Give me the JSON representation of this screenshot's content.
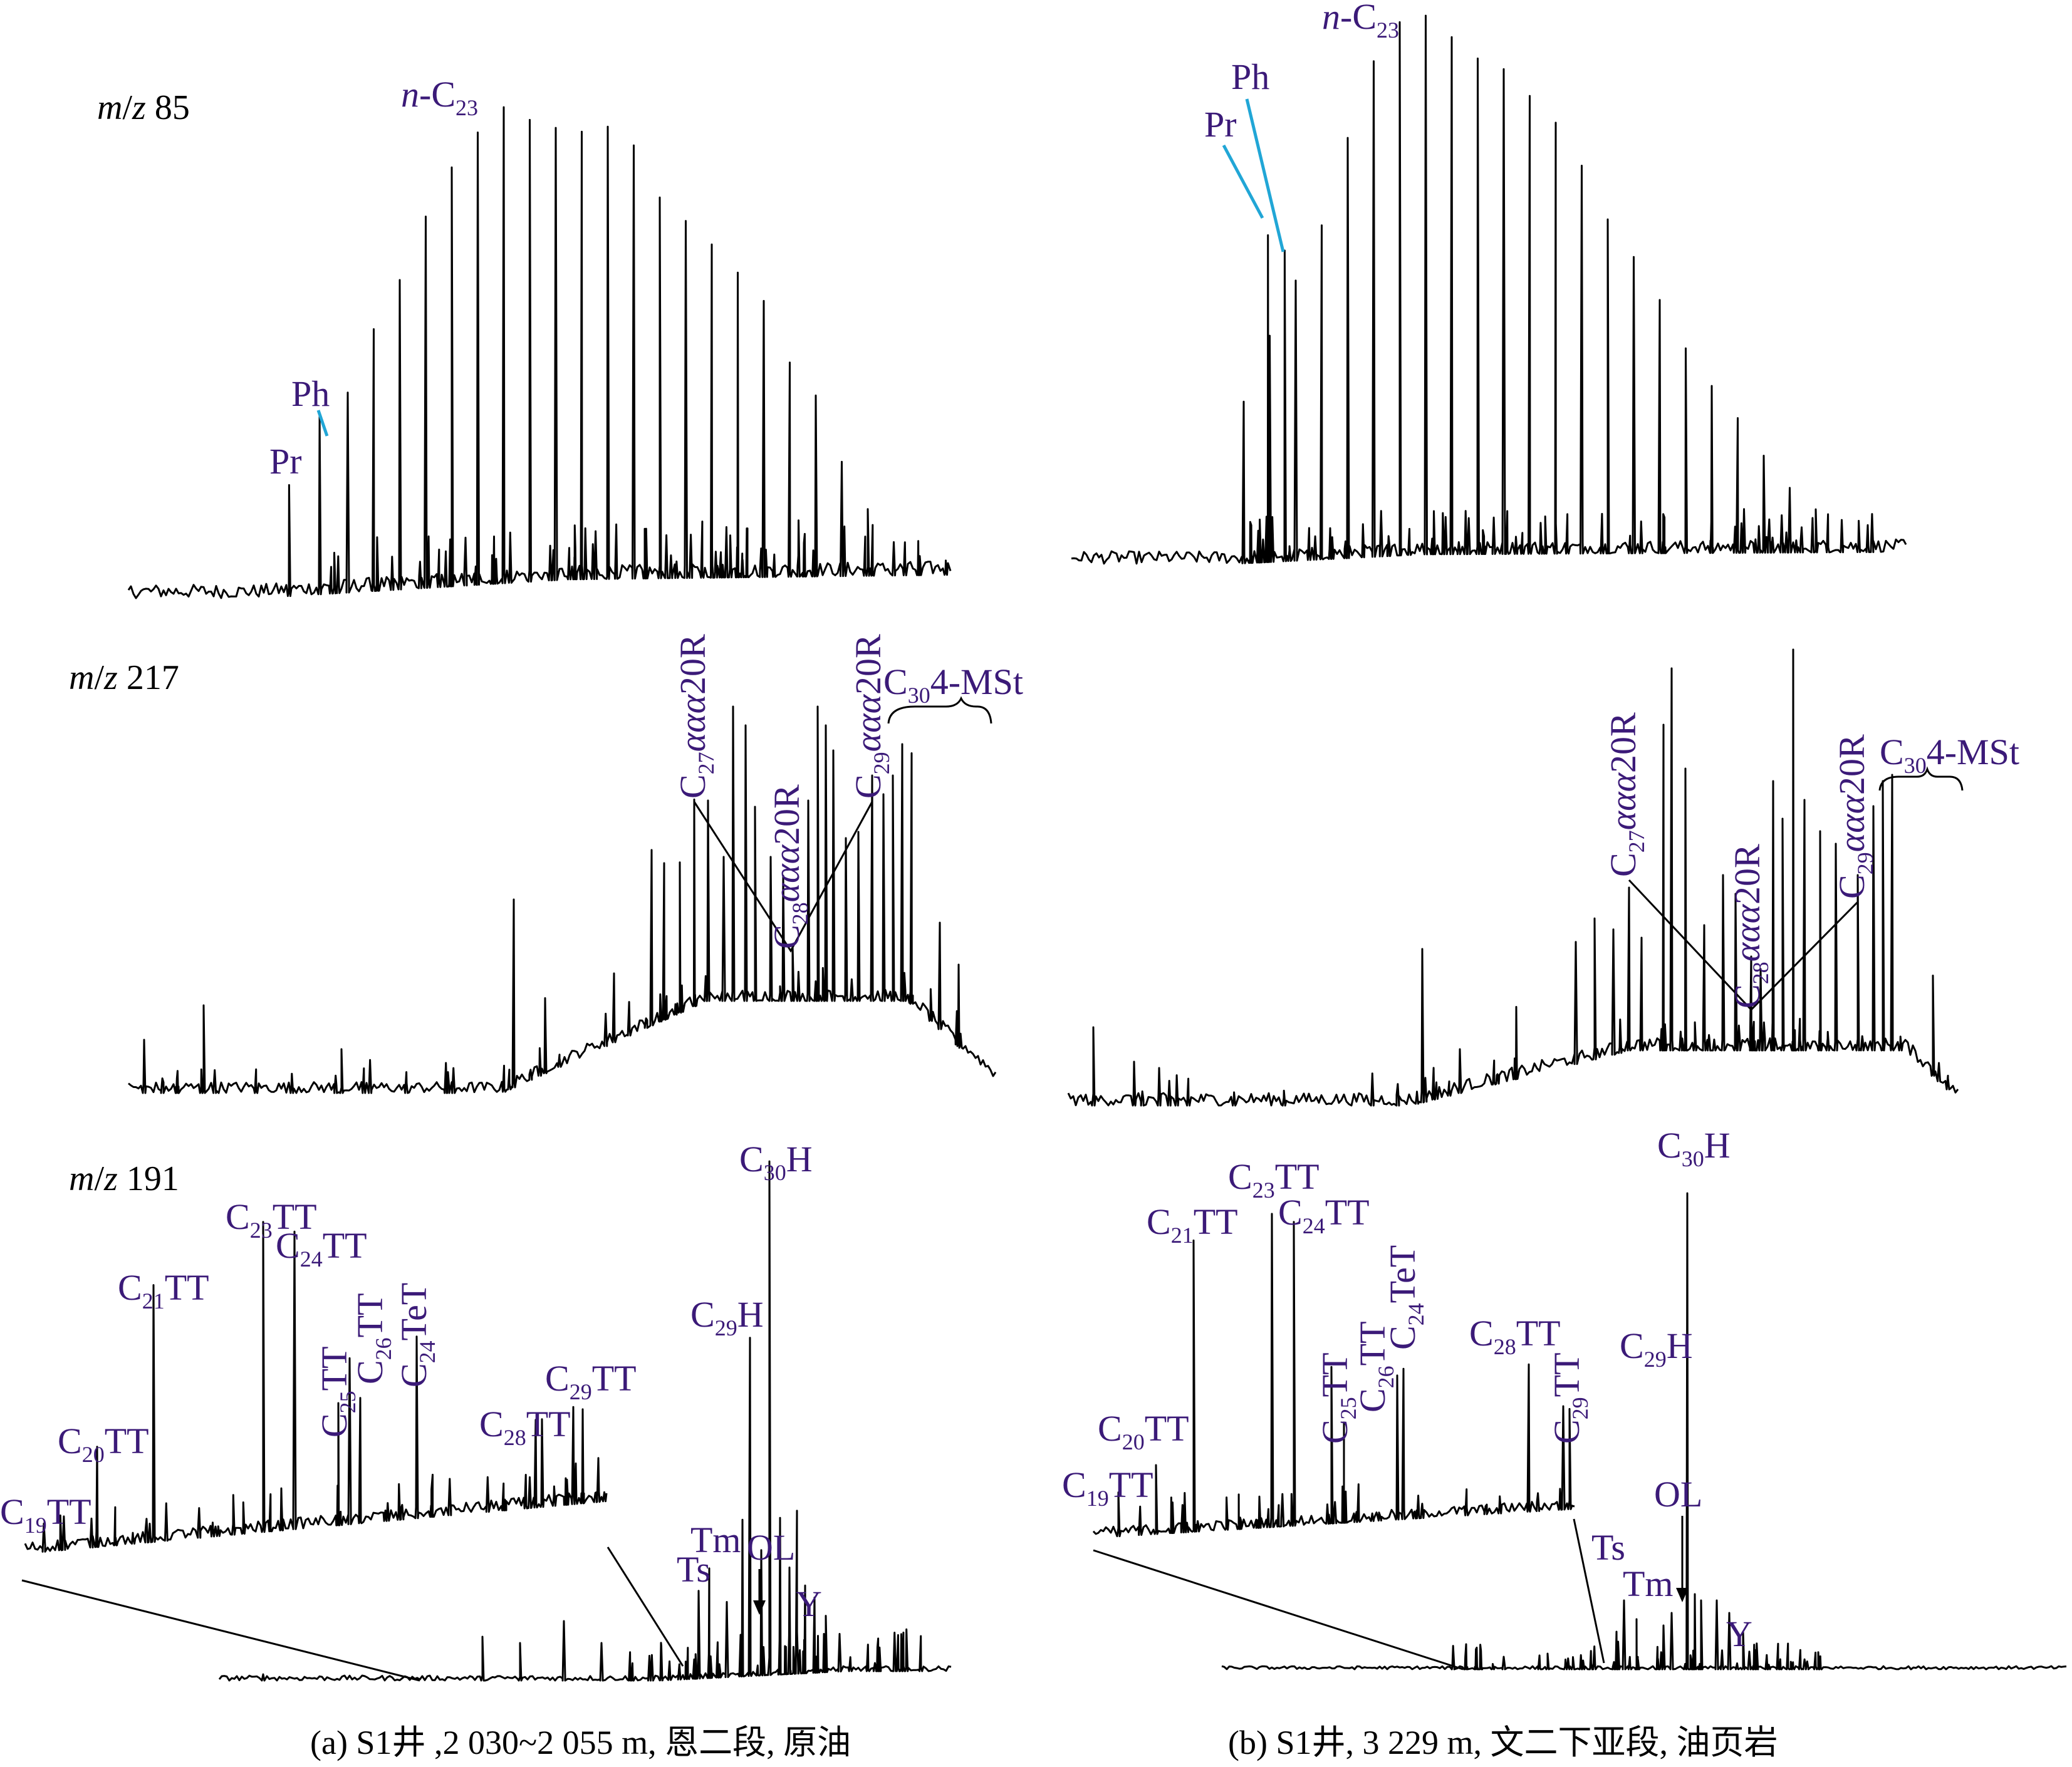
{
  "chart_data": [
    {
      "id": "a",
      "type": "line",
      "caption": "(a) S1井 ,2 030~2 055 m, 恩二段, 原油",
      "panels": [
        {
          "name": "m85",
          "mz_label": "m/z 85",
          "peaks_relative": [
            {
              "label": "Pr",
              "rt": 0.195,
              "h": 0.22
            },
            {
              "label": "Ph",
              "rt": 0.232,
              "h": 0.36
            },
            {
              "label": "n-C23",
              "rt": 0.395,
              "h": 1.0
            }
          ],
          "envelope_relative": [
            0.42,
            0.55,
            0.65,
            0.78,
            0.88,
            0.95,
            1.0,
            0.97,
            0.95,
            0.94,
            0.95,
            0.91,
            0.8,
            0.75,
            0.7,
            0.64,
            0.58,
            0.45,
            0.38,
            0.24,
            0.14,
            0.07,
            0.04,
            0.03
          ]
        },
        {
          "name": "m217",
          "mz_label": "m/z 217",
          "peaks": [
            "C27ααα20R",
            "C28ααα20R",
            "C29ααα20R",
            "C30 4-MSt"
          ]
        },
        {
          "name": "m191",
          "mz_label": "m/z 191",
          "peaks": [
            "C19TT",
            "C20TT",
            "C21TT",
            "C23TT",
            "C24TT",
            "C25TT",
            "C26TT",
            "C24TeT",
            "C28TT",
            "C29TT",
            "Ts",
            "Tm",
            "C29H",
            "C30H",
            "OL",
            "Y"
          ]
        }
      ]
    },
    {
      "id": "b",
      "type": "line",
      "caption": "(b) S1井, 3 229  m, 文二下亚段, 油页岩",
      "panels": [
        {
          "name": "m85",
          "peaks_relative": [
            {
              "label": "Pr",
              "rt": 0.235,
              "h": 0.63
            },
            {
              "label": "Ph",
              "rt": 0.255,
              "h": 0.6
            },
            {
              "label": "n-C23",
              "rt": 0.33,
              "h": 1.0
            }
          ],
          "envelope_relative": [
            0.3,
            0.42,
            0.52,
            0.62,
            0.78,
            0.92,
            0.99,
            1.0,
            0.96,
            0.92,
            0.9,
            0.85,
            0.8,
            0.72,
            0.62,
            0.55,
            0.47,
            0.38,
            0.31,
            0.25,
            0.18,
            0.12,
            0.08,
            0.06,
            0.05
          ]
        },
        {
          "name": "m217",
          "peaks": [
            "C27ααα20R",
            "C28ααα20R",
            "C29ααα20R",
            "C30 4-MSt"
          ]
        },
        {
          "name": "m191",
          "peaks": [
            "C19TT",
            "C20TT",
            "C21TT",
            "C23TT",
            "C24TT",
            "C25TT",
            "C26TT",
            "C24TeT",
            "C28TT",
            "C29TT",
            "Ts",
            "Tm",
            "C29H",
            "C30H",
            "OL",
            "Y"
          ]
        }
      ]
    }
  ]
}
